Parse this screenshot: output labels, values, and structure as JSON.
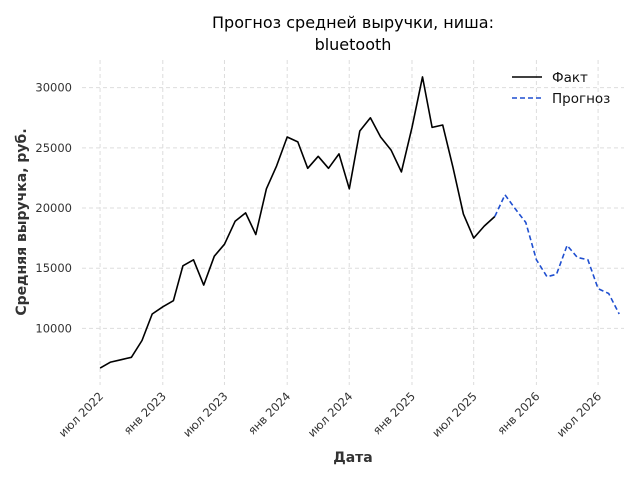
{
  "chart_data": {
    "type": "line",
    "title": [
      "Прогноз средней выручки, ниша:",
      "bluetooth"
    ],
    "xlabel": "Дата",
    "ylabel": "Средняя выручка, руб.",
    "x_ticks": [
      {
        "date": "2022-07-01",
        "label": "июл 2022"
      },
      {
        "date": "2023-01-01",
        "label": "янв 2023"
      },
      {
        "date": "2023-07-01",
        "label": "июл 2023"
      },
      {
        "date": "2024-01-01",
        "label": "янв 2024"
      },
      {
        "date": "2024-07-01",
        "label": "июл 2024"
      },
      {
        "date": "2025-01-01",
        "label": "янв 2025"
      },
      {
        "date": "2025-07-01",
        "label": "июл 2025"
      },
      {
        "date": "2026-01-01",
        "label": "янв 2026"
      },
      {
        "date": "2026-07-01",
        "label": "июл 2026"
      }
    ],
    "y_ticks": [
      {
        "value": 10000,
        "label": "10000"
      },
      {
        "value": 15000,
        "label": "15000"
      },
      {
        "value": 20000,
        "label": "20000"
      },
      {
        "value": 25000,
        "label": "25000"
      },
      {
        "value": 30000,
        "label": "30000"
      }
    ],
    "xlim": [
      "2022-05-09",
      "2026-09-15"
    ],
    "ylim": [
      5300,
      32300
    ],
    "grid": true,
    "legend": "top-right",
    "series": [
      {
        "name": "Факт",
        "color": "#000000",
        "dash": "solid",
        "points": [
          [
            "2022-07-01",
            6700
          ],
          [
            "2022-08-01",
            7200
          ],
          [
            "2022-09-01",
            7400
          ],
          [
            "2022-10-01",
            7600
          ],
          [
            "2022-11-01",
            9000
          ],
          [
            "2022-12-01",
            11200
          ],
          [
            "2023-01-01",
            11800
          ],
          [
            "2023-02-01",
            12300
          ],
          [
            "2023-03-01",
            15200
          ],
          [
            "2023-04-01",
            15700
          ],
          [
            "2023-05-01",
            13600
          ],
          [
            "2023-06-01",
            16000
          ],
          [
            "2023-07-01",
            17000
          ],
          [
            "2023-08-01",
            18900
          ],
          [
            "2023-09-01",
            19600
          ],
          [
            "2023-10-01",
            17800
          ],
          [
            "2023-11-01",
            21600
          ],
          [
            "2023-12-01",
            23500
          ],
          [
            "2024-01-01",
            25900
          ],
          [
            "2024-02-01",
            25500
          ],
          [
            "2024-03-01",
            23300
          ],
          [
            "2024-04-01",
            24300
          ],
          [
            "2024-05-01",
            23300
          ],
          [
            "2024-06-01",
            24500
          ],
          [
            "2024-07-01",
            21600
          ],
          [
            "2024-08-01",
            26400
          ],
          [
            "2024-09-01",
            27500
          ],
          [
            "2024-10-01",
            25900
          ],
          [
            "2024-11-01",
            24800
          ],
          [
            "2024-12-01",
            23000
          ],
          [
            "2025-01-01",
            26700
          ],
          [
            "2025-02-01",
            30900
          ],
          [
            "2025-03-01",
            26700
          ],
          [
            "2025-04-01",
            26900
          ],
          [
            "2025-05-01",
            23400
          ],
          [
            "2025-06-01",
            19500
          ],
          [
            "2025-07-01",
            17500
          ],
          [
            "2025-08-01",
            18500
          ],
          [
            "2025-09-01",
            19300
          ]
        ]
      },
      {
        "name": "Прогноз",
        "color": "#1f4fd0",
        "dash": "dashed",
        "points": [
          [
            "2025-09-01",
            19300
          ],
          [
            "2025-10-01",
            21100
          ],
          [
            "2025-11-01",
            19900
          ],
          [
            "2025-12-01",
            18800
          ],
          [
            "2026-01-01",
            15700
          ],
          [
            "2026-02-01",
            14300
          ],
          [
            "2026-03-01",
            14500
          ],
          [
            "2026-04-01",
            16900
          ],
          [
            "2026-05-01",
            15900
          ],
          [
            "2026-06-01",
            15700
          ],
          [
            "2026-07-01",
            13300
          ],
          [
            "2026-08-01",
            12900
          ],
          [
            "2026-09-01",
            11200
          ]
        ]
      }
    ]
  }
}
